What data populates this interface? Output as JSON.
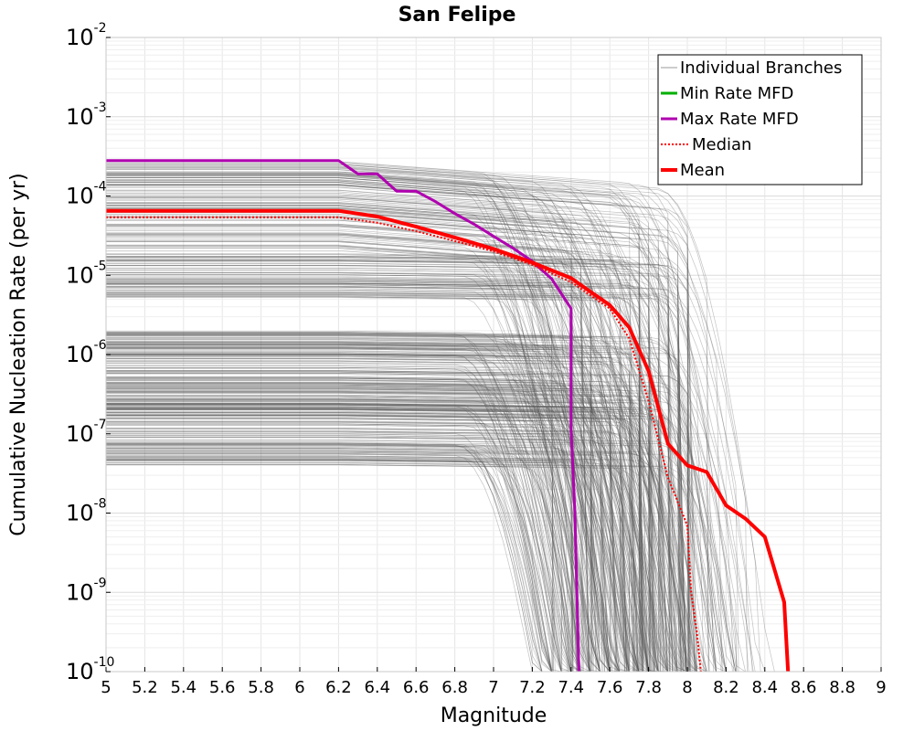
{
  "chart_data": {
    "type": "line",
    "title": "San Felipe",
    "xlabel": "Magnitude",
    "ylabel": "Cumulative Nucleation Rate (per yr)",
    "xlim": [
      5,
      9
    ],
    "ylim": [
      1e-10,
      0.01
    ],
    "yscale": "log",
    "grid": true,
    "legend_position": "top-right",
    "x_ticks": [
      "5",
      "5.2",
      "5.4",
      "5.6",
      "5.8",
      "6",
      "6.2",
      "6.4",
      "6.6",
      "6.8",
      "7",
      "7.2",
      "7.4",
      "7.6",
      "7.8",
      "8",
      "8.2",
      "8.4",
      "8.6",
      "8.8",
      "9"
    ],
    "y_ticks": [
      {
        "base": "10",
        "exp": "-2",
        "value": 0.01
      },
      {
        "base": "10",
        "exp": "-3",
        "value": 0.001
      },
      {
        "base": "10",
        "exp": "-4",
        "value": 0.0001
      },
      {
        "base": "10",
        "exp": "-5",
        "value": 1e-05
      },
      {
        "base": "10",
        "exp": "-6",
        "value": 1e-06
      },
      {
        "base": "10",
        "exp": "-7",
        "value": 1e-07
      },
      {
        "base": "10",
        "exp": "-8",
        "value": 1e-08
      },
      {
        "base": "10",
        "exp": "-9",
        "value": 1e-09
      },
      {
        "base": "10",
        "exp": "-10",
        "value": 1e-10
      }
    ],
    "colors": {
      "branches": "#555555",
      "min_rate": "#00b000",
      "max_rate": "#b000b0",
      "median": "#ff0000",
      "mean": "#ff0000"
    },
    "branches_description": {
      "count_drawn": 500,
      "rate_range_at_m5": [
        4e-08,
        0.00028
      ],
      "corner_mag_range": [
        6.8,
        7.9
      ],
      "max_mag_range": [
        7.3,
        8.5
      ]
    },
    "series": [
      {
        "name": "Individual Branches",
        "style": "thin-gray",
        "points": []
      },
      {
        "name": "Min Rate MFD",
        "style": "solid",
        "color": "#00b000",
        "points": []
      },
      {
        "name": "Max Rate MFD",
        "style": "solid",
        "color": "#b000b0",
        "points": [
          [
            5.0,
            0.00028
          ],
          [
            6.2,
            0.00028
          ],
          [
            6.3,
            0.00019
          ],
          [
            6.4,
            0.00019
          ],
          [
            6.5,
            0.000115
          ],
          [
            6.6,
            0.000115
          ],
          [
            6.7,
            8.5e-05
          ],
          [
            6.8,
            6e-05
          ],
          [
            6.9,
            4.4e-05
          ],
          [
            7.0,
            3.1e-05
          ],
          [
            7.1,
            2.2e-05
          ],
          [
            7.2,
            1.5e-05
          ],
          [
            7.3,
            9e-06
          ],
          [
            7.4,
            3.8e-06
          ],
          [
            7.4,
            1.2e-07
          ],
          [
            7.42,
            1e-08
          ],
          [
            7.44,
            1e-10
          ]
        ]
      },
      {
        "name": "Median",
        "style": "dotted",
        "color": "#ff0000",
        "points": [
          [
            5.0,
            5.4e-05
          ],
          [
            6.2,
            5.4e-05
          ],
          [
            6.4,
            4.6e-05
          ],
          [
            6.6,
            3.6e-05
          ],
          [
            6.8,
            2.7e-05
          ],
          [
            7.0,
            2e-05
          ],
          [
            7.2,
            1.35e-05
          ],
          [
            7.4,
            8.2e-06
          ],
          [
            7.6,
            3.8e-06
          ],
          [
            7.7,
            1.6e-06
          ],
          [
            7.8,
            2.6e-07
          ],
          [
            7.9,
            2.8e-08
          ],
          [
            8.0,
            7e-09
          ],
          [
            8.02,
            1e-09
          ],
          [
            8.05,
            3e-10
          ],
          [
            8.07,
            1e-10
          ]
        ]
      },
      {
        "name": "Mean",
        "style": "thick",
        "color": "#ff0000",
        "points": [
          [
            5.0,
            6.5e-05
          ],
          [
            6.2,
            6.5e-05
          ],
          [
            6.4,
            5.5e-05
          ],
          [
            6.6,
            4.1e-05
          ],
          [
            6.8,
            3e-05
          ],
          [
            7.0,
            2.15e-05
          ],
          [
            7.2,
            1.45e-05
          ],
          [
            7.4,
            9.2e-06
          ],
          [
            7.5,
            6.2e-06
          ],
          [
            7.6,
            4.2e-06
          ],
          [
            7.7,
            2.2e-06
          ],
          [
            7.8,
            6.2e-07
          ],
          [
            7.9,
            7.5e-08
          ],
          [
            8.0,
            4e-08
          ],
          [
            8.1,
            3.3e-08
          ],
          [
            8.2,
            1.25e-08
          ],
          [
            8.3,
            8.5e-09
          ],
          [
            8.4,
            5e-09
          ],
          [
            8.5,
            7.5e-10
          ],
          [
            8.52,
            1e-10
          ]
        ]
      }
    ]
  }
}
